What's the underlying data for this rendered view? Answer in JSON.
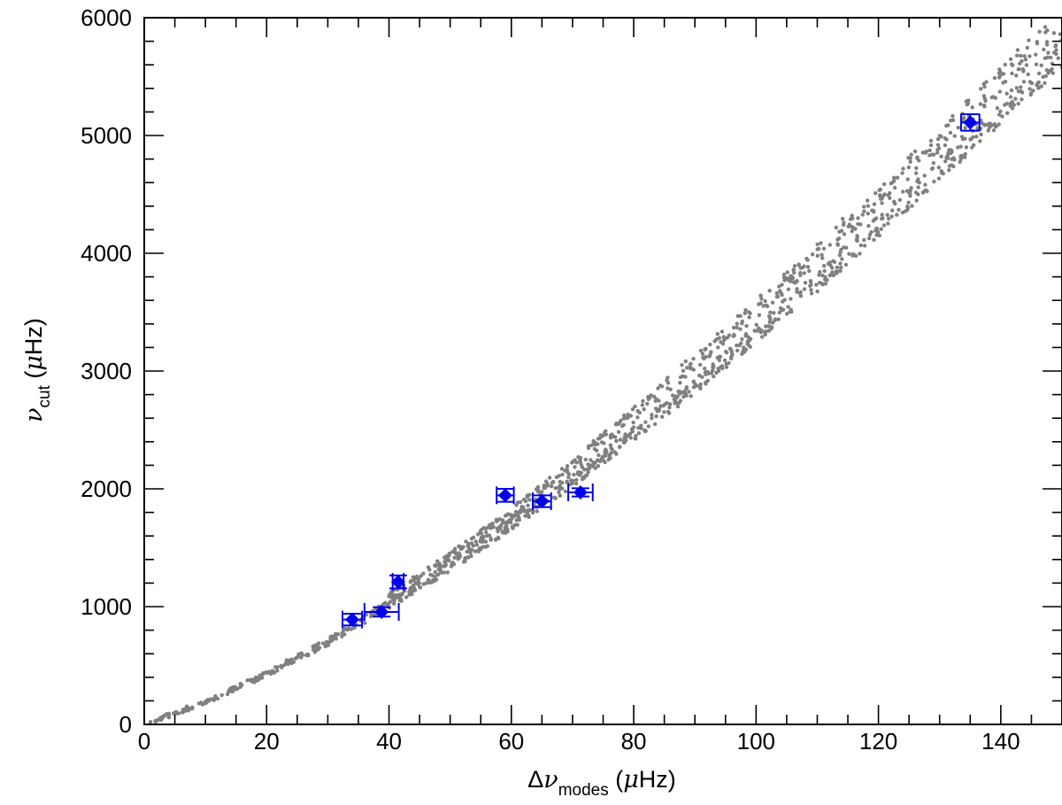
{
  "chart_data": {
    "type": "scatter",
    "title": "",
    "xlabel": {
      "prefix": "Δ",
      "symbol": "ν",
      "subscript": "modes",
      "unit_open": " (",
      "unit_symbol": "μ",
      "unit_rest": "Hz)"
    },
    "ylabel": {
      "prefix": "",
      "symbol": "ν",
      "subscript": "cut",
      "unit_open": " (",
      "unit_symbol": "μ",
      "unit_rest": "Hz)"
    },
    "xlim": [
      0,
      150
    ],
    "ylim": [
      0,
      6000
    ],
    "x_ticks": [
      0,
      20,
      40,
      60,
      80,
      100,
      120,
      140
    ],
    "x_tick_labels": [
      "0",
      "20",
      "40",
      "60",
      "80",
      "100",
      "120",
      "140"
    ],
    "y_ticks": [
      0,
      1000,
      2000,
      3000,
      4000,
      5000,
      6000
    ],
    "y_tick_labels": [
      "0",
      "1000",
      "2000",
      "3000",
      "4000",
      "5000",
      "6000"
    ],
    "x_minor_step": 5,
    "y_minor_step": 200,
    "grid": false,
    "legend": "none",
    "colors": {
      "models": "#808080",
      "observed": "#0000ee",
      "axes": "#000000"
    },
    "series": [
      {
        "marker": "small-dot",
        "note_model_tracks": [
          {
            "x": [
              1,
              10,
              20,
              30,
              40,
              50,
              60,
              70,
              80,
              90,
              100,
              110,
              120,
              130,
              140,
              150
            ],
            "y": [
              20,
              190,
              430,
              700,
              1020,
              1340,
              1700,
              2070,
              2470,
              2880,
              3320,
              3760,
              4230,
              4720,
              5200,
              5700
            ]
          },
          {
            "x": [
              40,
              50,
              60,
              70,
              80,
              90,
              100,
              110,
              120,
              130,
              140,
              150
            ],
            "y": [
              1080,
              1420,
              1790,
              2200,
              2630,
              3080,
              3530,
              4000,
              4480,
              4960,
              5470,
              5980
            ]
          }
        ]
      },
      {
        "marker": "diamond",
        "points": [
          {
            "x": 34.0,
            "y": 890,
            "xerr": 1.6,
            "yerr": 50
          },
          {
            "x": 38.8,
            "y": 955,
            "xerr": 2.8,
            "yerr": 40
          },
          {
            "x": 41.5,
            "y": 1210,
            "xerr": 0.9,
            "yerr": 55
          },
          {
            "x": 59.0,
            "y": 1945,
            "xerr": 1.4,
            "yerr": 55
          },
          {
            "x": 65.0,
            "y": 1895,
            "xerr": 1.5,
            "yerr": 50
          },
          {
            "x": 71.3,
            "y": 1970,
            "xerr": 2.0,
            "yerr": 35
          },
          {
            "x": 135.0,
            "y": 5110,
            "xerr": 1.5,
            "yerr": 70
          }
        ]
      }
    ]
  }
}
